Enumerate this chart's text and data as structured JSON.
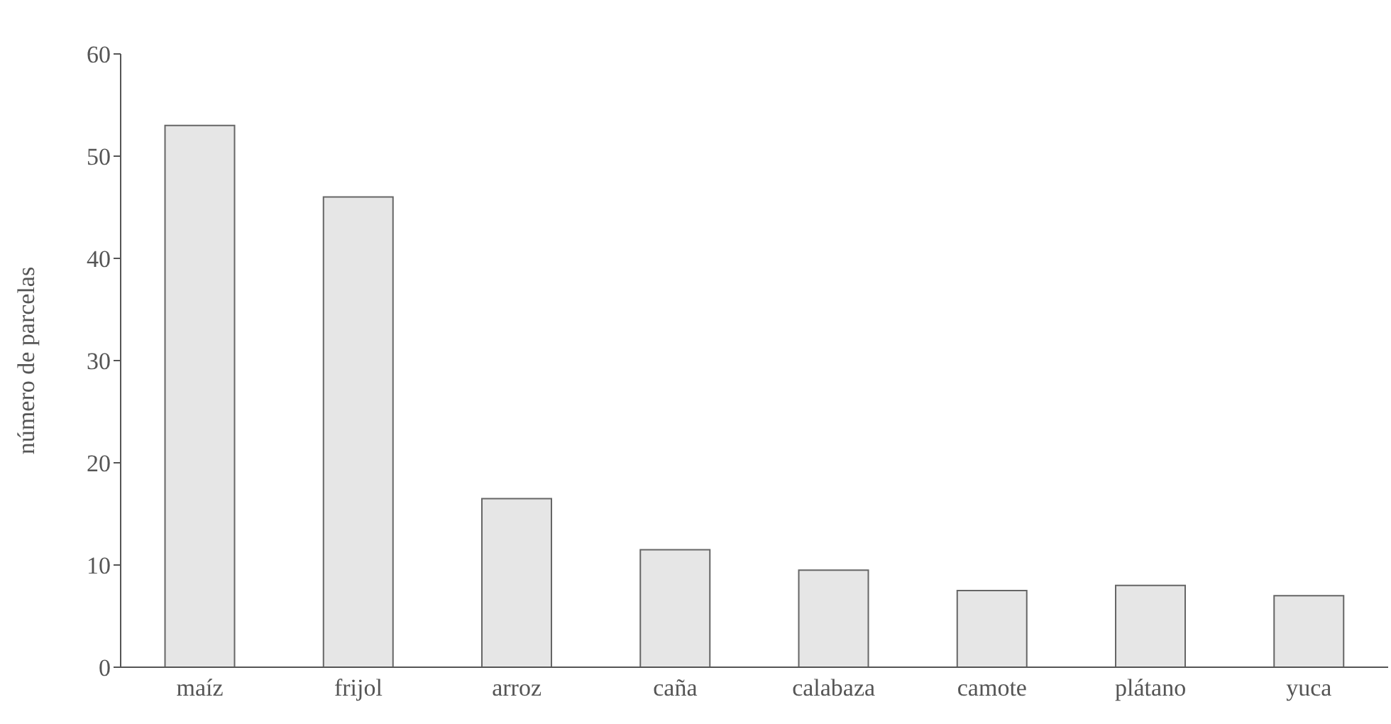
{
  "chart_data": {
    "type": "bar",
    "ylabel": "número de parcelas",
    "categories": [
      "maíz",
      "frijol",
      "arroz",
      "caña",
      "calabaza",
      "camote",
      "plátano",
      "yuca"
    ],
    "values": [
      53,
      46,
      16.5,
      11.5,
      9.5,
      7.5,
      8,
      7
    ],
    "color": "#e6e6e6",
    "ylim": [
      0,
      60
    ],
    "yticks": [
      0,
      10,
      20,
      30,
      40,
      50,
      60
    ],
    "grid": false
  }
}
